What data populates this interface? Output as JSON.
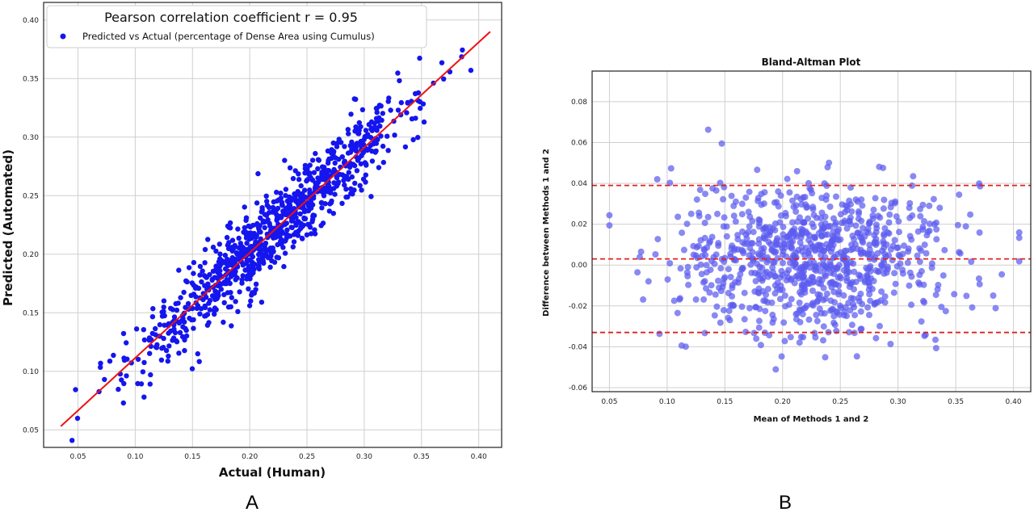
{
  "panel_labels": {
    "a": "A",
    "b": "B"
  },
  "colors": {
    "points_a": "#1515ee",
    "fit_line": "#ee1111",
    "points_b": "#5b5bf0",
    "limits": "#e02020"
  },
  "chart_data": [
    {
      "type": "scatter",
      "legend_title": "Pearson correlation coefficient r = 0.95",
      "series": [
        {
          "name": "Predicted vs Actual (percentage of Dense Area using Cumulus)",
          "n_points": 900
        }
      ],
      "fit_line": {
        "x": [
          0.035,
          0.41
        ],
        "y": [
          0.053,
          0.39
        ]
      },
      "xlabel": "Actual (Human)",
      "ylabel": "Predicted (Automated)",
      "xlim": [
        0.02,
        0.42
      ],
      "ylim": [
        0.035,
        0.415
      ],
      "xticks": [
        "0.05",
        "0.10",
        "0.15",
        "0.20",
        "0.25",
        "0.30",
        "0.35",
        "0.40"
      ],
      "yticks": [
        "0.05",
        "0.10",
        "0.15",
        "0.20",
        "0.25",
        "0.30",
        "0.35",
        "0.40"
      ],
      "grid": true,
      "legend_position": "top-left"
    },
    {
      "type": "scatter",
      "title": "Bland-Altman Plot",
      "series": [
        {
          "n_points": 900
        }
      ],
      "reference_lines": [
        0.039,
        0.003,
        -0.033
      ],
      "xlabel": "Mean of Methods 1 and 2",
      "ylabel": "Difference between Methods 1 and 2",
      "xlim": [
        0.035,
        0.415
      ],
      "ylim": [
        -0.062,
        0.095
      ],
      "xticks": [
        "0.05",
        "0.10",
        "0.15",
        "0.20",
        "0.25",
        "0.30",
        "0.35",
        "0.40"
      ],
      "yticks": [
        "0.08",
        "0.06",
        "0.04",
        "0.02",
        "0.00",
        "-0.02",
        "-0.04",
        "-0.06"
      ],
      "grid": true
    }
  ]
}
